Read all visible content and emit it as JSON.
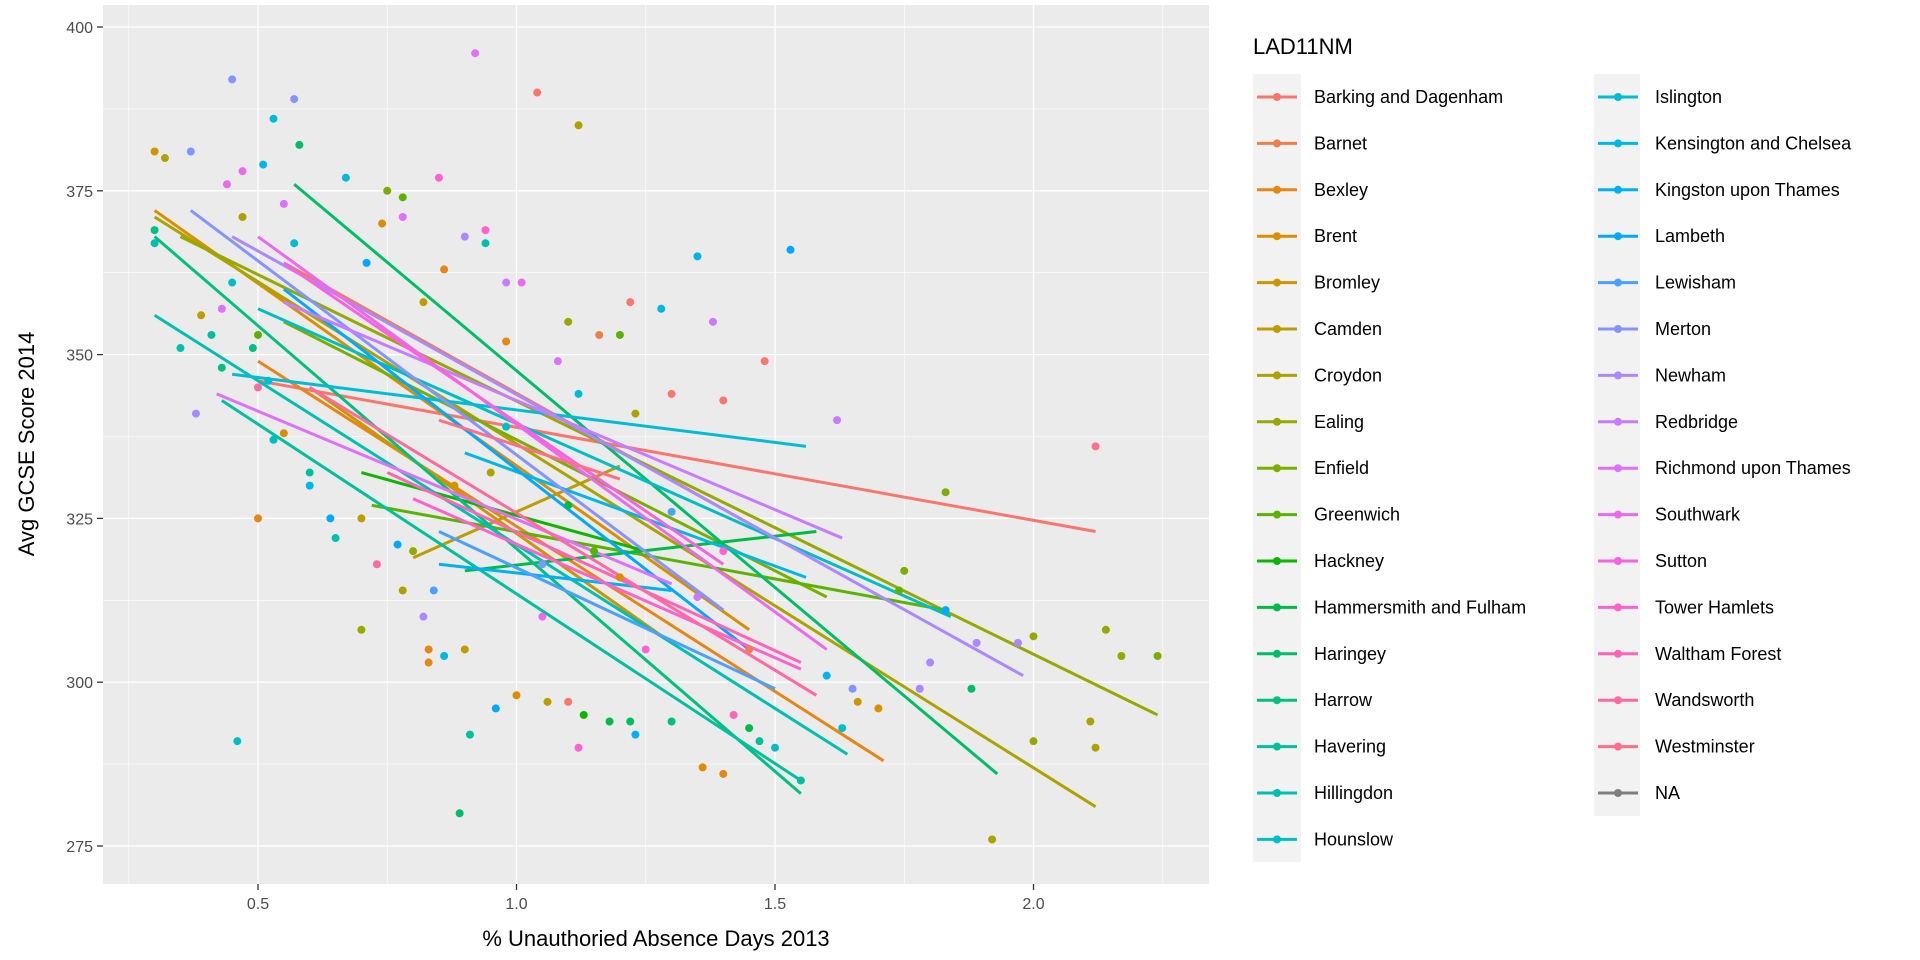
{
  "chart_data": {
    "type": "scatter",
    "title": "",
    "xlabel": "% Unauthoried Absence Days 2013",
    "ylabel": "Avg GCSE Score 2014",
    "xlim": [
      0.2,
      2.33
    ],
    "ylim": [
      270,
      404
    ],
    "xticks": [
      0.5,
      1.0,
      1.5,
      2.0
    ],
    "xtick_labels": [
      "0.5",
      "1.0",
      "1.5",
      "2.0"
    ],
    "yticks": [
      275,
      300,
      325,
      350,
      375,
      400
    ],
    "ytick_labels": [
      "275",
      "300",
      "325",
      "350",
      "375",
      "400"
    ],
    "grid": true,
    "legend": {
      "title": "LAD11NM",
      "placement": "right",
      "entries": [
        "Barking and Dagenham",
        "Barnet",
        "Bexley",
        "Brent",
        "Bromley",
        "Camden",
        "Croydon",
        "Ealing",
        "Enfield",
        "Greenwich",
        "Hackney",
        "Hammersmith and Fulham",
        "Haringey",
        "Harrow",
        "Havering",
        "Hillingdon",
        "Hounslow",
        "Islington",
        "Kensington and Chelsea",
        "Kingston upon Thames",
        "Lambeth",
        "Lewisham",
        "Merton",
        "Newham",
        "Redbridge",
        "Richmond upon Thames",
        "Southwark",
        "Sutton",
        "Tower Hamlets",
        "Waltham Forest",
        "Wandsworth",
        "Westminster",
        "NA"
      ]
    },
    "na_color": "#7F7F7F",
    "fit_lines": [
      {
        "group": 0,
        "x": [
          0.5,
          2.12
        ],
        "y": [
          346,
          323
        ]
      },
      {
        "group": 1,
        "x": [
          0.55,
          1.5
        ],
        "y": [
          364,
          322
        ]
      },
      {
        "group": 2,
        "x": [
          0.5,
          1.71
        ],
        "y": [
          349,
          288
        ]
      },
      {
        "group": 3,
        "x": [
          0.3,
          1.45
        ],
        "y": [
          372,
          308
        ]
      },
      {
        "group": 4,
        "x": [
          0.6,
          1.3
        ],
        "y": [
          345,
          306
        ]
      },
      {
        "group": 5,
        "x": [
          0.8,
          1.2
        ],
        "y": [
          319,
          333
        ]
      },
      {
        "group": 6,
        "x": [
          0.3,
          2.12
        ],
        "y": [
          371,
          281
        ]
      },
      {
        "group": 7,
        "x": [
          0.35,
          2.24
        ],
        "y": [
          368,
          295
        ]
      },
      {
        "group": 8,
        "x": [
          0.55,
          1.6
        ],
        "y": [
          355,
          313
        ]
      },
      {
        "group": 9,
        "x": [
          0.72,
          1.83
        ],
        "y": [
          327,
          311
        ]
      },
      {
        "group": 10,
        "x": [
          0.7,
          1.25
        ],
        "y": [
          332,
          320
        ]
      },
      {
        "group": 11,
        "x": [
          0.9,
          1.58
        ],
        "y": [
          317,
          323
        ]
      },
      {
        "group": 12,
        "x": [
          0.57,
          1.93
        ],
        "y": [
          376,
          286
        ]
      },
      {
        "group": 13,
        "x": [
          0.3,
          1.55
        ],
        "y": [
          368,
          283
        ]
      },
      {
        "group": 14,
        "x": [
          0.43,
          1.55
        ],
        "y": [
          343,
          285
        ]
      },
      {
        "group": 15,
        "x": [
          0.3,
          1.64
        ],
        "y": [
          356,
          289
        ]
      },
      {
        "group": 16,
        "x": [
          0.5,
          1.84
        ],
        "y": [
          357,
          310
        ]
      },
      {
        "group": 17,
        "x": [
          0.45,
          1.56
        ],
        "y": [
          347,
          336
        ]
      },
      {
        "group": 18,
        "x": [
          0.9,
          1.56
        ],
        "y": [
          335,
          316
        ]
      },
      {
        "group": 19,
        "x": [
          0.85,
          1.3
        ],
        "y": [
          318,
          314
        ]
      },
      {
        "group": 20,
        "x": [
          0.55,
          1.45
        ],
        "y": [
          360,
          305
        ]
      },
      {
        "group": 21,
        "x": [
          0.85,
          1.5
        ],
        "y": [
          323,
          299
        ]
      },
      {
        "group": 22,
        "x": [
          0.37,
          1.4
        ],
        "y": [
          372,
          311
        ]
      },
      {
        "group": 23,
        "x": [
          0.45,
          1.98
        ],
        "y": [
          368,
          301
        ]
      },
      {
        "group": 24,
        "x": [
          0.55,
          1.63
        ],
        "y": [
          358,
          322
        ]
      },
      {
        "group": 25,
        "x": [
          0.42,
          1.3
        ],
        "y": [
          344,
          315
        ]
      },
      {
        "group": 26,
        "x": [
          0.5,
          1.6
        ],
        "y": [
          368,
          305
        ]
      },
      {
        "group": 27,
        "x": [
          0.55,
          1.4
        ],
        "y": [
          364,
          318
        ]
      },
      {
        "group": 28,
        "x": [
          0.8,
          1.55
        ],
        "y": [
          328,
          302
        ]
      },
      {
        "group": 29,
        "x": [
          0.75,
          1.55
        ],
        "y": [
          332,
          303
        ]
      },
      {
        "group": 30,
        "x": [
          0.6,
          1.58
        ],
        "y": [
          345,
          298
        ]
      },
      {
        "group": 31,
        "x": [
          0.85,
          1.2
        ],
        "y": [
          340,
          331
        ]
      }
    ],
    "points": [
      [
        0.3,
        381,
        4
      ],
      [
        0.32,
        380,
        6
      ],
      [
        0.37,
        381,
        22
      ],
      [
        0.45,
        392,
        22
      ],
      [
        0.57,
        389,
        22
      ],
      [
        0.92,
        396,
        25
      ],
      [
        1.04,
        390,
        0
      ],
      [
        1.12,
        385,
        6
      ],
      [
        0.53,
        386,
        17
      ],
      [
        0.51,
        379,
        18
      ],
      [
        0.58,
        382,
        12
      ],
      [
        0.47,
        378,
        26
      ],
      [
        0.44,
        376,
        26
      ],
      [
        0.75,
        375,
        8
      ],
      [
        0.78,
        374,
        9
      ],
      [
        0.85,
        377,
        28
      ],
      [
        0.67,
        377,
        17
      ],
      [
        0.47,
        371,
        6
      ],
      [
        0.74,
        370,
        3
      ],
      [
        0.55,
        373,
        25
      ],
      [
        0.78,
        371,
        25
      ],
      [
        0.9,
        368,
        23
      ],
      [
        0.94,
        369,
        28
      ],
      [
        0.94,
        367,
        15
      ],
      [
        0.3,
        369,
        13
      ],
      [
        0.3,
        367,
        15
      ],
      [
        0.45,
        361,
        16
      ],
      [
        0.57,
        367,
        17
      ],
      [
        0.71,
        364,
        20
      ],
      [
        0.86,
        363,
        2
      ],
      [
        0.98,
        361,
        24
      ],
      [
        1.01,
        361,
        26
      ],
      [
        0.39,
        356,
        5
      ],
      [
        0.41,
        353,
        14
      ],
      [
        0.43,
        357,
        25
      ],
      [
        0.5,
        353,
        9
      ],
      [
        0.82,
        358,
        5
      ],
      [
        1.22,
        358,
        0
      ],
      [
        1.1,
        355,
        7
      ],
      [
        1.28,
        357,
        18
      ],
      [
        0.35,
        351,
        15
      ],
      [
        0.43,
        348,
        13
      ],
      [
        0.49,
        351,
        13
      ],
      [
        0.52,
        346,
        17
      ],
      [
        0.98,
        352,
        2
      ],
      [
        1.2,
        353,
        9
      ],
      [
        1.16,
        353,
        1
      ],
      [
        1.38,
        355,
        24
      ],
      [
        1.35,
        365,
        19
      ],
      [
        1.53,
        366,
        20
      ],
      [
        1.48,
        349,
        0
      ],
      [
        1.08,
        349,
        25
      ],
      [
        0.38,
        341,
        23
      ],
      [
        0.5,
        345,
        30
      ],
      [
        0.53,
        337,
        16
      ],
      [
        0.55,
        338,
        3
      ],
      [
        1.3,
        344,
        0
      ],
      [
        1.4,
        343,
        0
      ],
      [
        1.23,
        341,
        6
      ],
      [
        1.12,
        344,
        17
      ],
      [
        1.62,
        340,
        24
      ],
      [
        0.6,
        332,
        14
      ],
      [
        0.6,
        330,
        18
      ],
      [
        0.65,
        322,
        15
      ],
      [
        0.64,
        325,
        20
      ],
      [
        0.7,
        325,
        5
      ],
      [
        0.5,
        325,
        2
      ],
      [
        0.73,
        318,
        30
      ],
      [
        0.77,
        321,
        20
      ],
      [
        0.8,
        320,
        7
      ],
      [
        0.78,
        314,
        6
      ],
      [
        0.7,
        308,
        7
      ],
      [
        0.83,
        305,
        2
      ],
      [
        0.83,
        303,
        2
      ],
      [
        0.86,
        304,
        18
      ],
      [
        0.84,
        314,
        21
      ],
      [
        0.82,
        310,
        23
      ],
      [
        0.9,
        305,
        5
      ],
      [
        0.91,
        292,
        14
      ],
      [
        0.96,
        296,
        20
      ],
      [
        0.89,
        280,
        12
      ],
      [
        1.0,
        298,
        3
      ],
      [
        1.06,
        297,
        5
      ],
      [
        1.1,
        297,
        0
      ],
      [
        1.12,
        290,
        28
      ],
      [
        1.13,
        295,
        10
      ],
      [
        1.18,
        294,
        11
      ],
      [
        1.22,
        294,
        12
      ],
      [
        1.23,
        292,
        19
      ],
      [
        1.3,
        294,
        13
      ],
      [
        1.36,
        287,
        3
      ],
      [
        1.4,
        286,
        2
      ],
      [
        1.42,
        295,
        29
      ],
      [
        1.45,
        293,
        11
      ],
      [
        1.47,
        291,
        14
      ],
      [
        1.5,
        290,
        16
      ],
      [
        1.55,
        285,
        14
      ],
      [
        1.6,
        301,
        19
      ],
      [
        1.65,
        299,
        22
      ],
      [
        1.66,
        297,
        4
      ],
      [
        1.7,
        296,
        3
      ],
      [
        1.63,
        293,
        17
      ],
      [
        1.75,
        317,
        8
      ],
      [
        1.74,
        314,
        9
      ],
      [
        1.83,
        311,
        20
      ],
      [
        1.8,
        303,
        23
      ],
      [
        1.78,
        299,
        23
      ],
      [
        1.88,
        299,
        12
      ],
      [
        1.89,
        306,
        23
      ],
      [
        1.97,
        306,
        23
      ],
      [
        2.0,
        307,
        7
      ],
      [
        2.0,
        291,
        7
      ],
      [
        2.11,
        294,
        6
      ],
      [
        2.12,
        290,
        6
      ],
      [
        2.14,
        308,
        7
      ],
      [
        2.17,
        304,
        7
      ],
      [
        2.24,
        304,
        8
      ],
      [
        1.92,
        276,
        6
      ],
      [
        2.12,
        336,
        31
      ],
      [
        1.83,
        329,
        8
      ],
      [
        0.46,
        291,
        16
      ],
      [
        1.15,
        320,
        9
      ],
      [
        1.2,
        316,
        3
      ],
      [
        1.05,
        310,
        26
      ],
      [
        1.3,
        326,
        21
      ],
      [
        1.25,
        305,
        27
      ],
      [
        0.95,
        332,
        6
      ],
      [
        1.1,
        327,
        11
      ],
      [
        1.35,
        313,
        24
      ],
      [
        0.98,
        339,
        16
      ],
      [
        1.4,
        320,
        28
      ],
      [
        1.45,
        305,
        1
      ],
      [
        1.05,
        318,
        22
      ],
      [
        0.88,
        330,
        4
      ]
    ]
  }
}
